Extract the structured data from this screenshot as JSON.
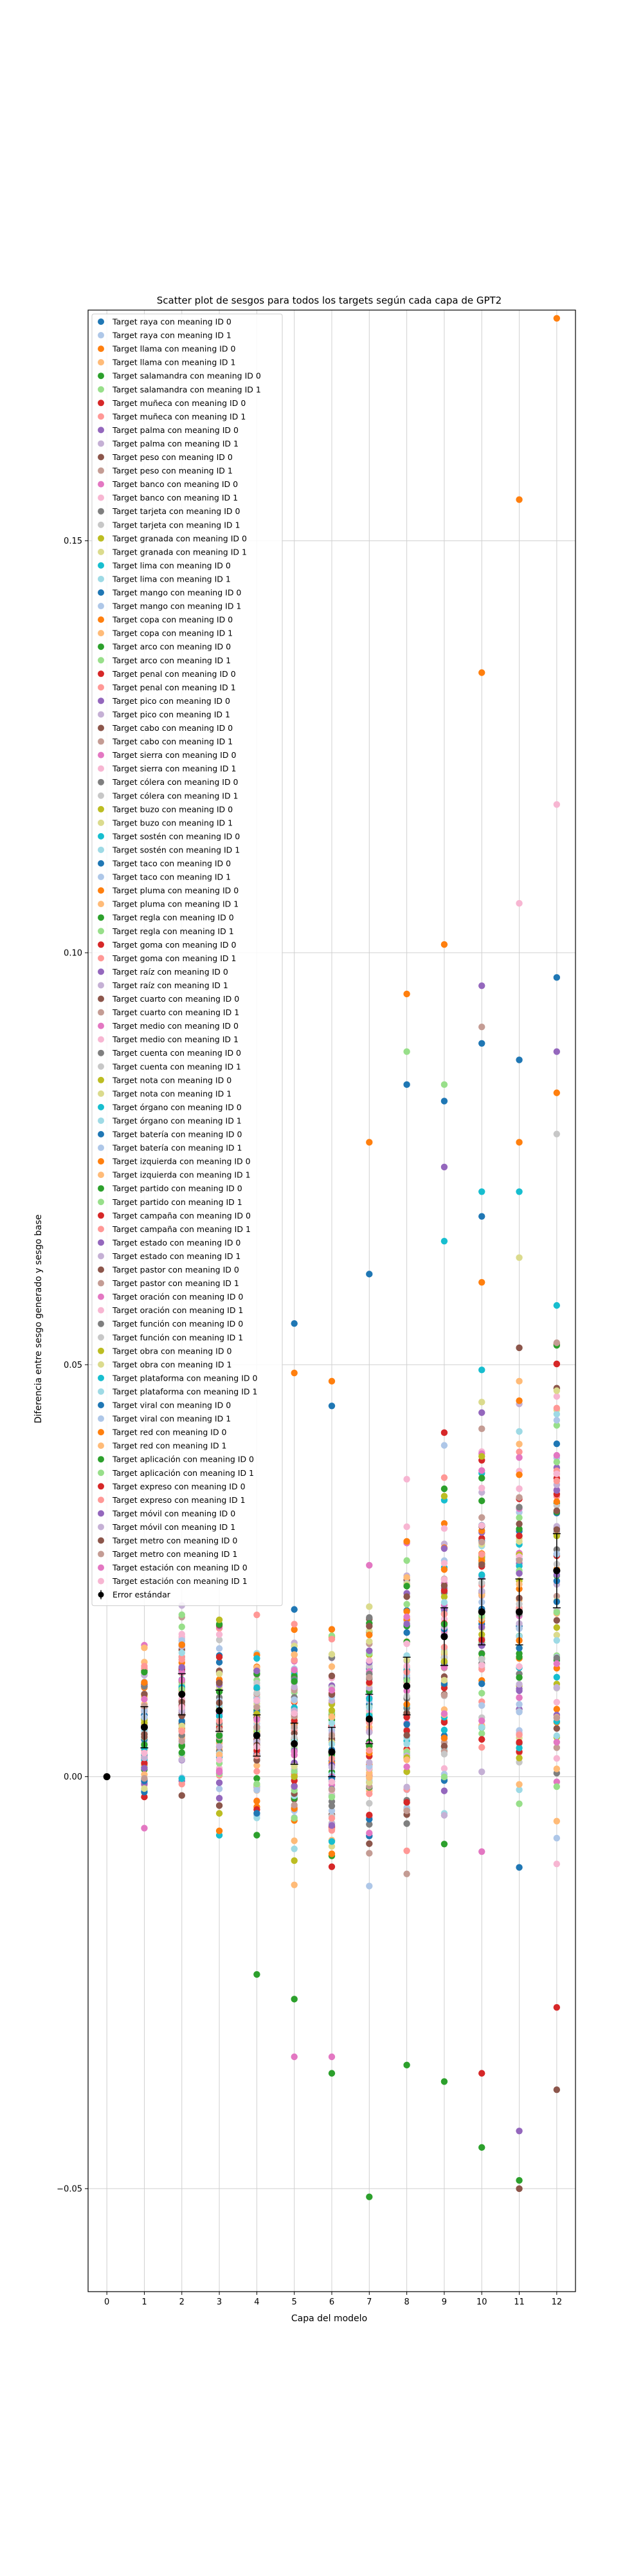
{
  "chart_data": {
    "type": "scatter",
    "title": "Scatter plot de sesgos para todos los targets según cada capa de GPT2",
    "xlabel": "Capa del modelo",
    "ylabel": "Diferencia entre sesgo generado y sesgo base",
    "x_ticks": [
      0,
      1,
      2,
      3,
      4,
      5,
      6,
      7,
      8,
      9,
      10,
      11,
      12
    ],
    "y_ticks": [
      -0.05,
      0.0,
      0.05,
      0.1,
      0.15
    ],
    "y_tick_labels": [
      "−0.05",
      "0.00",
      "0.05",
      "0.10",
      "0.15"
    ],
    "xlim": [
      -0.5,
      12.5
    ],
    "ylim": [
      -0.0625,
      0.178
    ],
    "grid": "vertical and horizontal at ticks",
    "legend_placement": "upper-left, inside axes",
    "colors": [
      "#1f77b4",
      "#aec7e8",
      "#ff7f0e",
      "#ffbb78",
      "#2ca02c",
      "#98df8a",
      "#d62728",
      "#ff9896",
      "#9467bd",
      "#c5b0d5",
      "#8c564b",
      "#c49c94",
      "#e377c2",
      "#f7b6d2",
      "#7f7f7f",
      "#c7c7c7",
      "#bcbd22",
      "#dbdb8d",
      "#17becf",
      "#9edae5"
    ],
    "series_names": [
      "Target raya con meaning ID 0",
      "Target raya con meaning ID 1",
      "Target llama con meaning ID 0",
      "Target llama con meaning ID 1",
      "Target salamandra con meaning ID 0",
      "Target salamandra con meaning ID 1",
      "Target muñeca con meaning ID 0",
      "Target muñeca con meaning ID 1",
      "Target palma con meaning ID 0",
      "Target palma con meaning ID 1",
      "Target peso con meaning ID 0",
      "Target peso con meaning ID 1",
      "Target banco con meaning ID 0",
      "Target banco con meaning ID 1",
      "Target tarjeta con meaning ID 0",
      "Target tarjeta con meaning ID 1",
      "Target granada con meaning ID 0",
      "Target granada con meaning ID 1",
      "Target lima con meaning ID 0",
      "Target lima con meaning ID 1",
      "Target mango con meaning ID 0",
      "Target mango con meaning ID 1",
      "Target copa con meaning ID 0",
      "Target copa con meaning ID 1",
      "Target arco con meaning ID 0",
      "Target arco con meaning ID 1",
      "Target penal con meaning ID 0",
      "Target penal con meaning ID 1",
      "Target pico con meaning ID 0",
      "Target pico con meaning ID 1",
      "Target cabo con meaning ID 0",
      "Target cabo con meaning ID 1",
      "Target sierra con meaning ID 0",
      "Target sierra con meaning ID 1",
      "Target cólera con meaning ID 0",
      "Target cólera con meaning ID 1",
      "Target buzo con meaning ID 0",
      "Target buzo con meaning ID 1",
      "Target sostén con meaning ID 0",
      "Target sostén con meaning ID 1",
      "Target taco con meaning ID 0",
      "Target taco con meaning ID 1",
      "Target pluma con meaning ID 0",
      "Target pluma con meaning ID 1",
      "Target regla con meaning ID 0",
      "Target regla con meaning ID 1",
      "Target goma con meaning ID 0",
      "Target goma con meaning ID 1",
      "Target raíz con meaning ID 0",
      "Target raíz con meaning ID 1",
      "Target cuarto con meaning ID 0",
      "Target cuarto con meaning ID 1",
      "Target medio con meaning ID 0",
      "Target medio con meaning ID 1",
      "Target cuenta con meaning ID 0",
      "Target cuenta con meaning ID 1",
      "Target nota con meaning ID 0",
      "Target nota con meaning ID 1",
      "Target órgano con meaning ID 0",
      "Target órgano con meaning ID 1",
      "Target batería con meaning ID 0",
      "Target batería con meaning ID 1",
      "Target izquierda con meaning ID 0",
      "Target izquierda con meaning ID 1",
      "Target partido con meaning ID 0",
      "Target partido con meaning ID 1",
      "Target campaña con meaning ID 0",
      "Target campaña con meaning ID 1",
      "Target estado con meaning ID 0",
      "Target estado con meaning ID 1",
      "Target pastor con meaning ID 0",
      "Target pastor con meaning ID 1",
      "Target oración con meaning ID 0",
      "Target oración con meaning ID 1",
      "Target función con meaning ID 0",
      "Target función con meaning ID 1",
      "Target obra con meaning ID 0",
      "Target obra con meaning ID 1",
      "Target plataforma con meaning ID 0",
      "Target plataforma con meaning ID 1",
      "Target viral con meaning ID 0",
      "Target viral con meaning ID 1",
      "Target red con meaning ID 0",
      "Target red con meaning ID 1",
      "Target aplicación con meaning ID 0",
      "Target aplicación con meaning ID 1",
      "Target expreso con meaning ID 0",
      "Target expreso con meaning ID 1",
      "Target móvil con meaning ID 0",
      "Target móvil con meaning ID 1",
      "Target metro con meaning ID 0",
      "Target metro con meaning ID 1",
      "Target estación con meaning ID 0",
      "Target estación con meaning ID 1"
    ],
    "error_label": "Error estándar",
    "layer_spread": {
      "x": [
        0,
        1,
        2,
        3,
        4,
        5,
        6,
        7,
        8,
        9,
        10,
        11,
        12
      ],
      "center": [
        0,
        0.006,
        0.009,
        0.007,
        0.005,
        0.004,
        0.003,
        0.007,
        0.011,
        0.017,
        0.02,
        0.02,
        0.025
      ],
      "sd": [
        0,
        0.009,
        0.01,
        0.01,
        0.011,
        0.012,
        0.012,
        0.015,
        0.018,
        0.02,
        0.022,
        0.024,
        0.026
      ]
    },
    "outliers": [
      {
        "x": 4,
        "y": -0.024,
        "s": 4
      },
      {
        "x": 5,
        "y": -0.027,
        "s": 4
      },
      {
        "x": 5,
        "y": -0.034,
        "s": 12
      },
      {
        "x": 5,
        "y": 0.055,
        "s": 0
      },
      {
        "x": 5,
        "y": 0.049,
        "s": 2
      },
      {
        "x": 6,
        "y": -0.036,
        "s": 4
      },
      {
        "x": 6,
        "y": -0.034,
        "s": 12
      },
      {
        "x": 6,
        "y": 0.048,
        "s": 2
      },
      {
        "x": 6,
        "y": 0.045,
        "s": 0
      },
      {
        "x": 7,
        "y": -0.051,
        "s": 4
      },
      {
        "x": 7,
        "y": 0.077,
        "s": 2
      },
      {
        "x": 7,
        "y": 0.061,
        "s": 0
      },
      {
        "x": 8,
        "y": -0.035,
        "s": 4
      },
      {
        "x": 8,
        "y": 0.095,
        "s": 2
      },
      {
        "x": 8,
        "y": 0.088,
        "s": 5
      },
      {
        "x": 8,
        "y": 0.084,
        "s": 0
      },
      {
        "x": 9,
        "y": -0.037,
        "s": 4
      },
      {
        "x": 9,
        "y": 0.101,
        "s": 2
      },
      {
        "x": 9,
        "y": 0.084,
        "s": 5
      },
      {
        "x": 9,
        "y": 0.082,
        "s": 0
      },
      {
        "x": 9,
        "y": 0.074,
        "s": 8
      },
      {
        "x": 9,
        "y": 0.065,
        "s": 18
      },
      {
        "x": 10,
        "y": -0.045,
        "s": 4
      },
      {
        "x": 10,
        "y": -0.036,
        "s": 6
      },
      {
        "x": 10,
        "y": 0.134,
        "s": 2
      },
      {
        "x": 10,
        "y": 0.096,
        "s": 8
      },
      {
        "x": 10,
        "y": 0.091,
        "s": 11
      },
      {
        "x": 10,
        "y": 0.089,
        "s": 0
      },
      {
        "x": 10,
        "y": 0.071,
        "s": 18
      },
      {
        "x": 10,
        "y": 0.068,
        "s": 0
      },
      {
        "x": 10,
        "y": 0.06,
        "s": 2
      },
      {
        "x": 11,
        "y": -0.049,
        "s": 4
      },
      {
        "x": 11,
        "y": -0.05,
        "s": 10
      },
      {
        "x": 11,
        "y": -0.043,
        "s": 8
      },
      {
        "x": 11,
        "y": 0.155,
        "s": 2
      },
      {
        "x": 11,
        "y": 0.106,
        "s": 13
      },
      {
        "x": 11,
        "y": 0.087,
        "s": 0
      },
      {
        "x": 11,
        "y": 0.077,
        "s": 2
      },
      {
        "x": 11,
        "y": 0.071,
        "s": 18
      },
      {
        "x": 11,
        "y": 0.063,
        "s": 17
      },
      {
        "x": 12,
        "y": 0.177,
        "s": 2
      },
      {
        "x": 12,
        "y": 0.118,
        "s": 13
      },
      {
        "x": 12,
        "y": 0.097,
        "s": 0
      },
      {
        "x": 12,
        "y": 0.088,
        "s": 8
      },
      {
        "x": 12,
        "y": 0.083,
        "s": 2
      },
      {
        "x": 12,
        "y": 0.078,
        "s": 15
      },
      {
        "x": 12,
        "y": -0.038,
        "s": 10
      },
      {
        "x": 12,
        "y": -0.028,
        "s": 6
      }
    ],
    "mean_with_error": {
      "x": [
        0,
        1,
        2,
        3,
        4,
        5,
        6,
        7,
        8,
        9,
        10,
        11,
        12
      ],
      "mean": [
        0.0,
        0.006,
        0.01,
        0.008,
        0.005,
        0.004,
        0.003,
        0.007,
        0.011,
        0.017,
        0.02,
        0.02,
        0.025
      ],
      "err": [
        0.0,
        0.0025,
        0.0025,
        0.0025,
        0.0025,
        0.0025,
        0.003,
        0.003,
        0.0035,
        0.0035,
        0.004,
        0.004,
        0.0045
      ]
    }
  }
}
